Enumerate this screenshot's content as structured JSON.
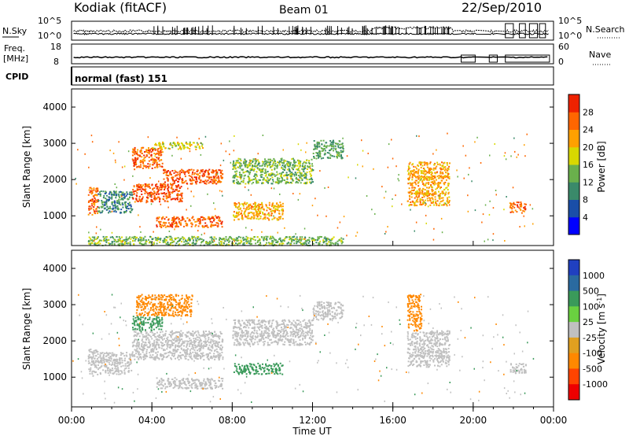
{
  "header": {
    "station": "Kodiak (fitACF)",
    "beam": "Beam 01",
    "date": "22/Sep/2010"
  },
  "top_strips": {
    "nsky_label": "N.Sky",
    "nsky_ticks": [
      "10^5",
      "10^0"
    ],
    "nsearch_label": "N.Search",
    "nsearch_ticks": [
      "10^5",
      "10^0"
    ],
    "freq_label_1": "Freq.",
    "freq_label_2": "[MHz]",
    "freq_ticks": [
      "18",
      "8"
    ],
    "nave_label": "Nave",
    "nave_ticks": [
      "60",
      "0"
    ],
    "cpid_label": "CPID",
    "cpid_value": "normal (fast) 151"
  },
  "colors": {
    "power_scale": [
      "#0000ff",
      "#1a4ea8",
      "#3a8a6a",
      "#6ab04c",
      "#d8d800",
      "#ffa000",
      "#ff6600",
      "#ee2200"
    ],
    "velocity_scale": [
      "#2040c0",
      "#2a6aa0",
      "#3a9a5a",
      "#6ad040",
      "#c0c0c0",
      "#e0a020",
      "#ff8800",
      "#ff4400",
      "#ee0000"
    ]
  },
  "chart_data": [
    {
      "type": "heatmap",
      "name": "power-panel",
      "xlabel": "",
      "ylabel": "Slant Range [km]",
      "xlim": [
        "00:00",
        "24:00"
      ],
      "ylim": [
        180,
        4500
      ],
      "y_ticks": [
        1000,
        2000,
        3000,
        4000
      ],
      "colorbar": {
        "label": "Power [dB]",
        "ticks": [
          4,
          8,
          12,
          16,
          20,
          24,
          28
        ],
        "range": [
          0,
          32
        ]
      },
      "echo_regions": [
        {
          "t": [
            0.8,
            1.3
          ],
          "r": [
            1050,
            1800
          ],
          "value": 26
        },
        {
          "t": [
            1.3,
            3.0
          ],
          "r": [
            1100,
            1700
          ],
          "value": 10
        },
        {
          "t": [
            3.0,
            5.5
          ],
          "r": [
            1400,
            1900
          ],
          "value": 27
        },
        {
          "t": [
            4.5,
            7.5
          ],
          "r": [
            1900,
            2300
          ],
          "value": 27
        },
        {
          "t": [
            3.0,
            4.5
          ],
          "r": [
            2300,
            2900
          ],
          "value": 26
        },
        {
          "t": [
            4.0,
            6.5
          ],
          "r": [
            2850,
            3050
          ],
          "value": 18
        },
        {
          "t": [
            4.2,
            7.5
          ],
          "r": [
            700,
            1000
          ],
          "value": 26
        },
        {
          "t": [
            8.0,
            10.5
          ],
          "r": [
            900,
            1400
          ],
          "value": 22
        },
        {
          "t": [
            8.0,
            12.0
          ],
          "r": [
            1900,
            2600
          ],
          "value": 14
        },
        {
          "t": [
            12.0,
            13.5
          ],
          "r": [
            2600,
            3100
          ],
          "value": 12
        },
        {
          "t": [
            16.7,
            18.8
          ],
          "r": [
            1300,
            2500
          ],
          "value": 22
        },
        {
          "t": [
            21.8,
            22.6
          ],
          "r": [
            1100,
            1400
          ],
          "value": 26
        },
        {
          "t": [
            0.8,
            13.5
          ],
          "r": [
            200,
            450
          ],
          "value": 14
        }
      ]
    },
    {
      "type": "heatmap",
      "name": "velocity-panel",
      "xlabel": "Time UT",
      "ylabel": "Slant Range [km]",
      "xlim": [
        "00:00",
        "24:00"
      ],
      "ylim": [
        180,
        4500
      ],
      "x_ticks": [
        "00:00",
        "04:00",
        "08:00",
        "12:00",
        "16:00",
        "20:00",
        "00:00"
      ],
      "y_ticks": [
        1000,
        2000,
        3000,
        4000
      ],
      "colorbar": {
        "label": "Velocity [m s^-1]",
        "ticks": [
          1000,
          500,
          100,
          25,
          -25,
          -100,
          -500,
          -1000
        ]
      },
      "echo_regions": [
        {
          "t": [
            0.8,
            1.3
          ],
          "r": [
            1050,
            1800
          ],
          "value": 0
        },
        {
          "t": [
            1.3,
            3.0
          ],
          "r": [
            1100,
            1700
          ],
          "value": 0
        },
        {
          "t": [
            3.0,
            7.5
          ],
          "r": [
            1500,
            2300
          ],
          "value": 0
        },
        {
          "t": [
            3.0,
            4.5
          ],
          "r": [
            2300,
            2700
          ],
          "value": 150
        },
        {
          "t": [
            3.2,
            6.0
          ],
          "r": [
            2700,
            3300
          ],
          "value": -150
        },
        {
          "t": [
            4.2,
            7.5
          ],
          "r": [
            700,
            1000
          ],
          "value": 0
        },
        {
          "t": [
            8.0,
            10.5
          ],
          "r": [
            1100,
            1400
          ],
          "value": 150
        },
        {
          "t": [
            8.0,
            12.0
          ],
          "r": [
            1900,
            2600
          ],
          "value": 0
        },
        {
          "t": [
            12.0,
            13.5
          ],
          "r": [
            2600,
            3100
          ],
          "value": 0
        },
        {
          "t": [
            16.7,
            17.4
          ],
          "r": [
            2300,
            3300
          ],
          "value": -150
        },
        {
          "t": [
            16.7,
            18.8
          ],
          "r": [
            1300,
            2300
          ],
          "value": 0
        },
        {
          "t": [
            21.8,
            22.6
          ],
          "r": [
            1100,
            1400
          ],
          "value": 0
        }
      ]
    }
  ]
}
